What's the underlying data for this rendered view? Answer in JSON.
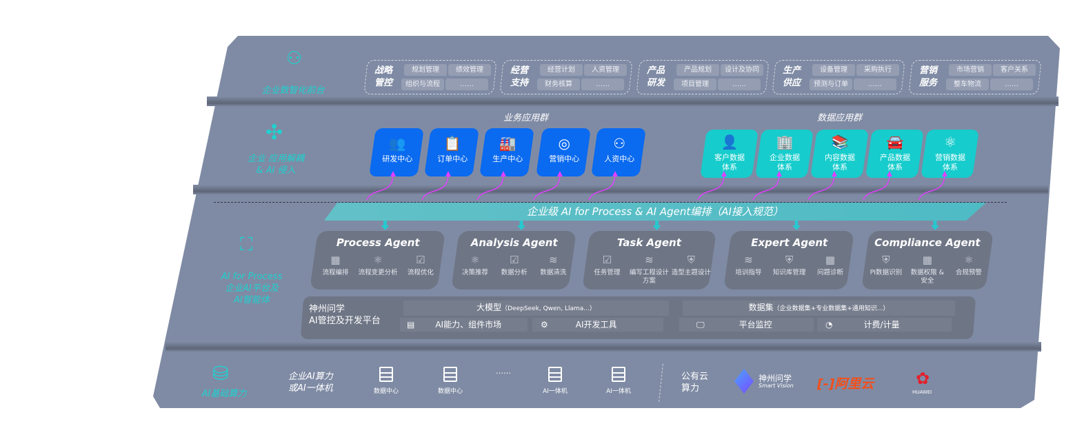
{
  "front": {
    "label": "企业数智化前台",
    "groups": [
      {
        "title": "战略\n管控",
        "items": [
          "规划管理",
          "绩效管理",
          "组织与流程",
          "……"
        ]
      },
      {
        "title": "经营\n支持",
        "items": [
          "经营计划",
          "人资管理",
          "财务核算",
          "……"
        ]
      },
      {
        "title": "产品\n研发",
        "items": [
          "产品规划",
          "设计及协同",
          "项目管理",
          "……"
        ]
      },
      {
        "title": "生产\n供应",
        "items": [
          "设备管理",
          "采购执行",
          "预测与订单",
          "……"
        ]
      },
      {
        "title": "营销\n服务",
        "items": [
          "市场营销",
          "客户关系",
          "整车物流",
          "……"
        ]
      }
    ]
  },
  "apps": {
    "label": "企业 应用解耦\n& AI 侵入",
    "business_title": "业务应用群",
    "business": [
      {
        "label": "研发中心",
        "icon": "people-icon"
      },
      {
        "label": "订单中心",
        "icon": "clipboard-icon"
      },
      {
        "label": "生产中心",
        "icon": "factory-icon"
      },
      {
        "label": "营销中心",
        "icon": "target-icon"
      },
      {
        "label": "人资中心",
        "icon": "user-icon"
      }
    ],
    "data_title": "数据应用群",
    "data": [
      {
        "label": "客户数据\n体系",
        "icon": "person-icon"
      },
      {
        "label": "企业数据\n体系",
        "icon": "building-icon"
      },
      {
        "label": "内容数据\n体系",
        "icon": "books-icon"
      },
      {
        "label": "产品数据\n体系",
        "icon": "car-icon"
      },
      {
        "label": "营销数据\n体系",
        "icon": "atom-icon"
      }
    ],
    "accent": "#0a6af0",
    "data_accent": "#17cccc",
    "link_color": "#e040fb"
  },
  "ai": {
    "banner": "企业级 AI for Process & AI Agent编排（AI接入规范）",
    "label": "AI for Process\n企业AI平台及\nAI智能体",
    "agents": [
      {
        "title": "Process Agent",
        "items": [
          "流程编排",
          "流程变更分析",
          "流程优化"
        ]
      },
      {
        "title": "Analysis Agent",
        "items": [
          "决策推荐",
          "数据分析",
          "数据清洗"
        ]
      },
      {
        "title": "Task Agent",
        "items": [
          "任务管理",
          "编写工程设计方案",
          "造型主题设计"
        ]
      },
      {
        "title": "Expert Agent",
        "items": [
          "培训指导",
          "知识库管理",
          "问题诊断"
        ]
      },
      {
        "title": "Compliance Agent",
        "items": [
          "PI数据识别",
          "数据权限 &\n安全",
          "合规预警"
        ]
      }
    ],
    "platform": {
      "name": "神州问学\nAI管控及开发平台",
      "model": "大模型",
      "model_note": "（DeepSeek, Qwen, Llama...）",
      "dataset": "数据集",
      "dataset_note": "（企业数据集+专业数据集+通用知识...）",
      "market": "AI能力、组件市场",
      "devtools": "AI开发工具",
      "monitor": "平台监控",
      "billing": "计费/计量"
    }
  },
  "infra": {
    "label": "AI基础算力",
    "enterprise": "企业AI算力\n或AI一体机",
    "servers": [
      "数据中心",
      "数据中心",
      "……",
      "AI一体机",
      "AI一体机"
    ],
    "public": "公有云\n算力",
    "vendors": [
      "神州问学",
      "Smart Vision",
      "阿里云",
      "HUAWEI"
    ]
  }
}
